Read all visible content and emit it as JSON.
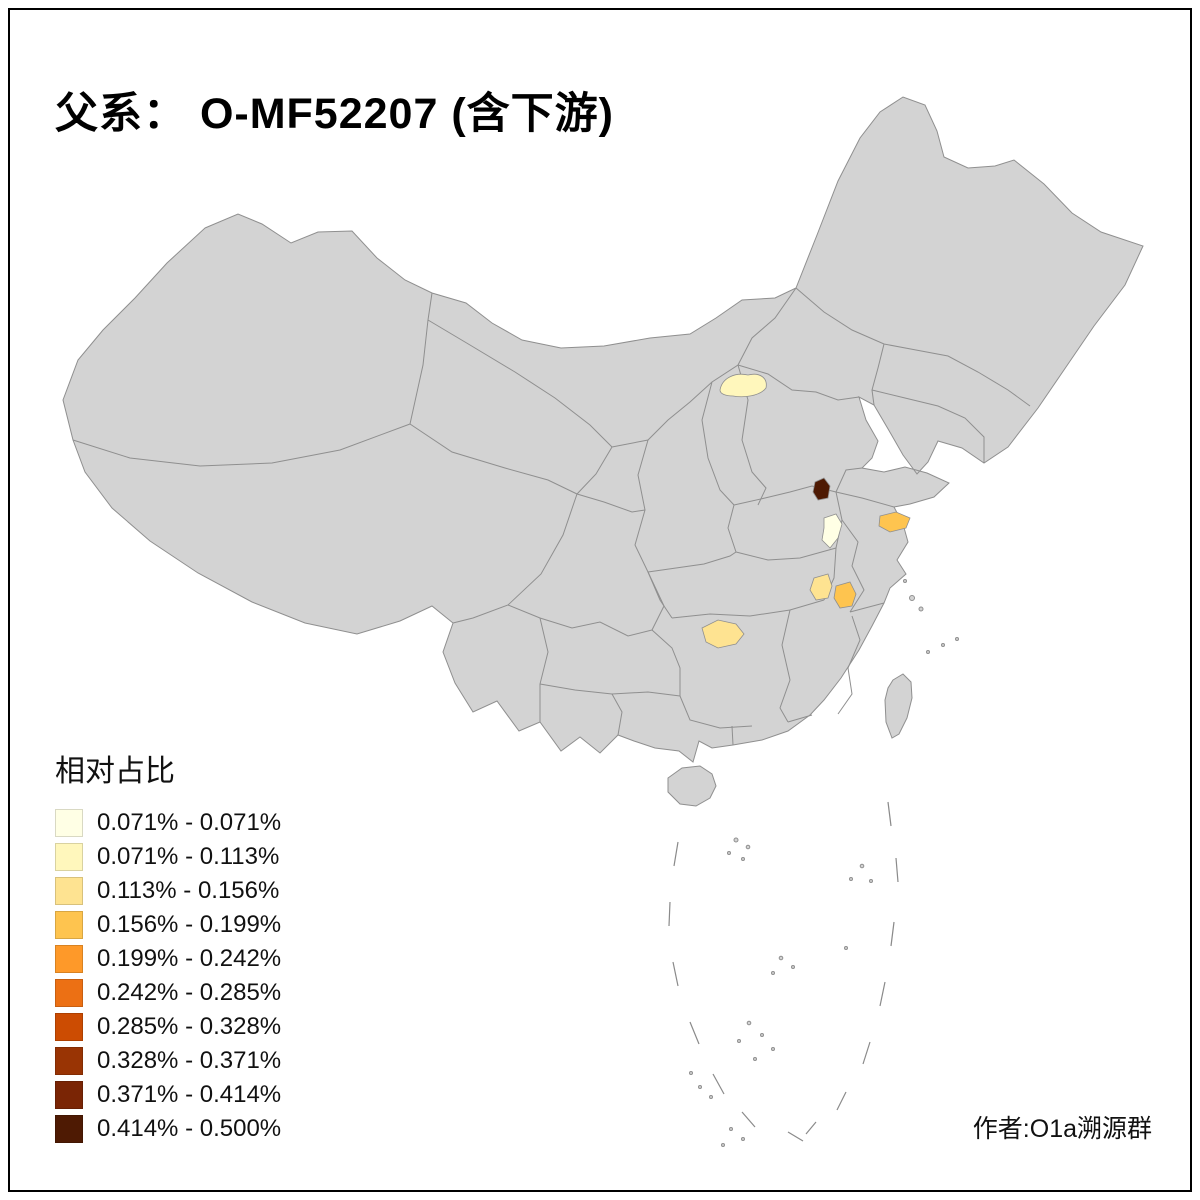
{
  "title": "父系： O-MF52207 (含下游)",
  "legend": {
    "title": "相对占比",
    "bins": [
      {
        "label": "0.071% - 0.071%",
        "color": "#FFFFE5"
      },
      {
        "label": "0.071% - 0.113%",
        "color": "#FFF7BC"
      },
      {
        "label": "0.113% - 0.156%",
        "color": "#FEE391"
      },
      {
        "label": "0.156% - 0.199%",
        "color": "#FEC44F"
      },
      {
        "label": "0.199% - 0.242%",
        "color": "#FE9929"
      },
      {
        "label": "0.242% - 0.285%",
        "color": "#EC7014"
      },
      {
        "label": "0.285% - 0.328%",
        "color": "#CC4C02"
      },
      {
        "label": "0.328% - 0.371%",
        "color": "#993404"
      },
      {
        "label": "0.371% - 0.414%",
        "color": "#7A2505"
      },
      {
        "label": "0.414% - 0.500%",
        "color": "#4E1A03"
      }
    ]
  },
  "credit": "作者:O1a溯源群",
  "map": {
    "land_color": "#D3D3D3",
    "border_color": "#8F8F8F",
    "highlights": [
      {
        "name": "north-hebei-pale-region",
        "color": "#FFF7BC"
      },
      {
        "name": "henan-dark-region",
        "color": "#4E1A03"
      },
      {
        "name": "henan-south-cream-region",
        "color": "#FFFFE5"
      },
      {
        "name": "jiangsu-orange-region",
        "color": "#FEC44F"
      },
      {
        "name": "anhui-west-gold-region",
        "color": "#FEE391"
      },
      {
        "name": "anhui-east-gold-region",
        "color": "#FEC44F"
      },
      {
        "name": "hunan-west-pale-region",
        "color": "#FEE391"
      }
    ]
  }
}
